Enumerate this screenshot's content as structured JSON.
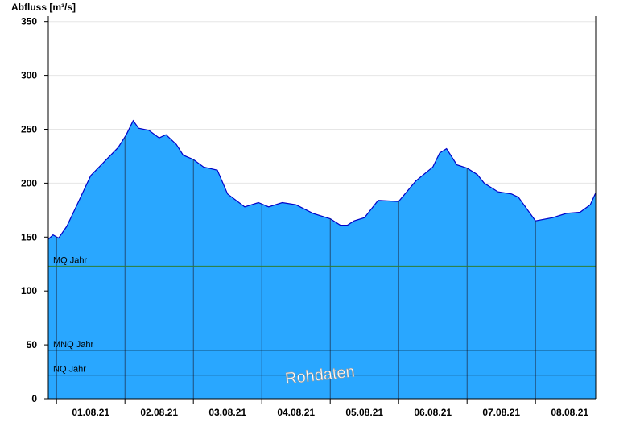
{
  "chart_data": {
    "type": "area",
    "ylabel": "Abfluss [m³/s]",
    "ylim": [
      0,
      355
    ],
    "xlim": [
      -0.62,
      7.38
    ],
    "yticks": [
      0,
      50,
      100,
      150,
      200,
      250,
      300,
      350
    ],
    "ytick_labels": [
      "0",
      "50",
      "100",
      "150",
      "200",
      "250",
      "300",
      "350"
    ],
    "day_boundaries": [
      -0.5,
      0.5,
      1.5,
      2.5,
      3.5,
      4.5,
      5.5,
      6.5
    ],
    "xtick_positions": [
      0,
      1,
      2,
      3,
      4,
      5,
      6,
      7
    ],
    "xtick_labels": [
      "01.08.21",
      "02.08.21",
      "03.08.21",
      "04.08.21",
      "05.08.21",
      "06.08.21",
      "07.08.21",
      "08.08.21"
    ],
    "grid": "horizontal",
    "fill_color": "#29a7ff",
    "line_color": "#0000c8",
    "series": [
      {
        "x": [
          -0.62,
          -0.55,
          -0.47,
          -0.35,
          -0.2,
          0.0,
          0.2,
          0.4,
          0.52,
          0.62,
          0.7,
          0.85,
          1.0,
          1.1,
          1.25,
          1.35,
          1.5,
          1.65,
          1.85,
          2.0,
          2.25,
          2.45,
          2.6,
          2.8,
          3.0,
          3.25,
          3.5,
          3.65,
          3.75,
          3.85,
          4.0,
          4.2,
          4.5,
          4.75,
          5.0,
          5.1,
          5.2,
          5.35,
          5.5,
          5.65,
          5.75,
          5.95,
          6.15,
          6.25,
          6.5,
          6.75,
          6.95,
          7.15,
          7.3,
          7.38
        ],
        "y": [
          148,
          152,
          149,
          160,
          180,
          207,
          220,
          233,
          245,
          258,
          251,
          249,
          242,
          245,
          236,
          226,
          222,
          215,
          212,
          190,
          178,
          182,
          178,
          182,
          180,
          172,
          167,
          161,
          161,
          165,
          168,
          184,
          183,
          202,
          215,
          228,
          232,
          217,
          214,
          208,
          200,
          192,
          190,
          187,
          165,
          168,
          172,
          173,
          180,
          191
        ]
      }
    ],
    "reference_lines": [
      {
        "label": "MQ Jahr",
        "value": 123,
        "color": "#2e7d32"
      },
      {
        "label": "MNQ Jahr",
        "value": 45,
        "color": "#000000"
      },
      {
        "label": "NQ Jahr",
        "value": 22,
        "color": "#000000"
      }
    ],
    "watermark": "Rohdaten"
  }
}
